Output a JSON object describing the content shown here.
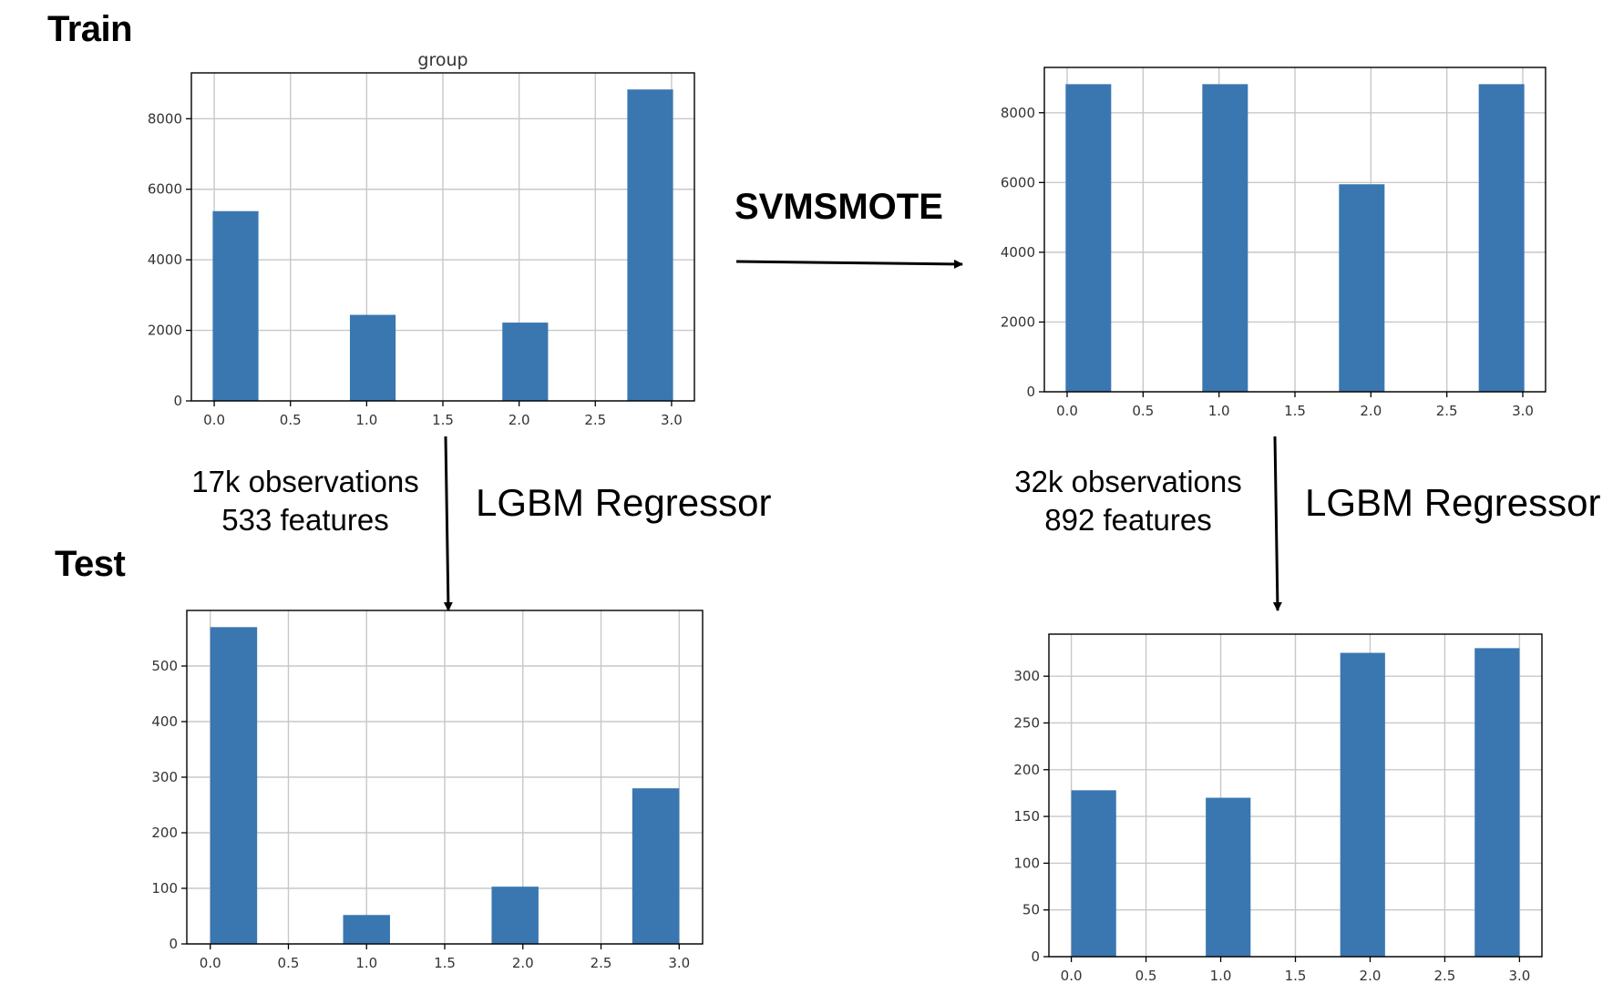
{
  "labels": {
    "train": "Train",
    "test": "Test",
    "resampler": "SVMSMOTE",
    "model_left": "LGBM Regressor",
    "model_right": "LGBM Regressor",
    "left_obs": "17k observations",
    "left_feat": "533 features",
    "right_obs": "32k observations",
    "right_feat": "892 features"
  },
  "colors": {
    "bar": "#3a77b1",
    "grid": "#c8c8c8",
    "frame": "#000000"
  },
  "chart_data": [
    {
      "id": "train-original",
      "type": "bar",
      "title": "group",
      "x": [
        0.14,
        1.04,
        2.04,
        2.86
      ],
      "values": [
        5380,
        2440,
        2220,
        8830
      ],
      "bar_width": 0.3,
      "xlim": [
        -0.15,
        3.15
      ],
      "ylim": [
        0,
        9300
      ],
      "xticks": [
        0.0,
        0.5,
        1.0,
        1.5,
        2.0,
        2.5,
        3.0
      ],
      "xtick_labels": [
        "0.0",
        "0.5",
        "1.0",
        "1.5",
        "2.0",
        "2.5",
        "3.0"
      ],
      "yticks": [
        0,
        2000,
        4000,
        6000,
        8000
      ],
      "ytick_labels": [
        "0",
        "2000",
        "4000",
        "6000",
        "8000"
      ],
      "grid": true
    },
    {
      "id": "train-svmsmote",
      "type": "bar",
      "title": "",
      "x": [
        0.14,
        1.04,
        1.94,
        2.86
      ],
      "values": [
        8820,
        8820,
        5950,
        8820
      ],
      "bar_width": 0.3,
      "xlim": [
        -0.15,
        3.15
      ],
      "ylim": [
        0,
        9300
      ],
      "xticks": [
        0.0,
        0.5,
        1.0,
        1.5,
        2.0,
        2.5,
        3.0
      ],
      "xtick_labels": [
        "0.0",
        "0.5",
        "1.0",
        "1.5",
        "2.0",
        "2.5",
        "3.0"
      ],
      "yticks": [
        0,
        2000,
        4000,
        6000,
        8000
      ],
      "ytick_labels": [
        "0",
        "2000",
        "4000",
        "6000",
        "8000"
      ],
      "grid": true
    },
    {
      "id": "test-original",
      "type": "bar",
      "title": "",
      "x": [
        0.15,
        1.0,
        1.95,
        2.85
      ],
      "values": [
        570,
        52,
        103,
        280
      ],
      "bar_width": 0.3,
      "xlim": [
        -0.15,
        3.15
      ],
      "ylim": [
        0,
        600
      ],
      "xticks": [
        0.0,
        0.5,
        1.0,
        1.5,
        2.0,
        2.5,
        3.0
      ],
      "xtick_labels": [
        "0.0",
        "0.5",
        "1.0",
        "1.5",
        "2.0",
        "2.5",
        "3.0"
      ],
      "yticks": [
        0,
        100,
        200,
        300,
        400,
        500
      ],
      "ytick_labels": [
        "0",
        "100",
        "200",
        "300",
        "400",
        "500"
      ],
      "grid": true
    },
    {
      "id": "test-svmsmote",
      "type": "bar",
      "title": "",
      "x": [
        0.15,
        1.05,
        1.95,
        2.85
      ],
      "values": [
        178,
        170,
        325,
        330
      ],
      "bar_width": 0.3,
      "xlim": [
        -0.15,
        3.15
      ],
      "ylim": [
        0,
        345
      ],
      "xticks": [
        0.0,
        0.5,
        1.0,
        1.5,
        2.0,
        2.5,
        3.0
      ],
      "xtick_labels": [
        "0.0",
        "0.5",
        "1.0",
        "1.5",
        "2.0",
        "2.5",
        "3.0"
      ],
      "yticks": [
        0,
        50,
        100,
        150,
        200,
        250,
        300
      ],
      "ytick_labels": [
        "0",
        "50",
        "100",
        "150",
        "200",
        "250",
        "300"
      ],
      "grid": true
    }
  ]
}
